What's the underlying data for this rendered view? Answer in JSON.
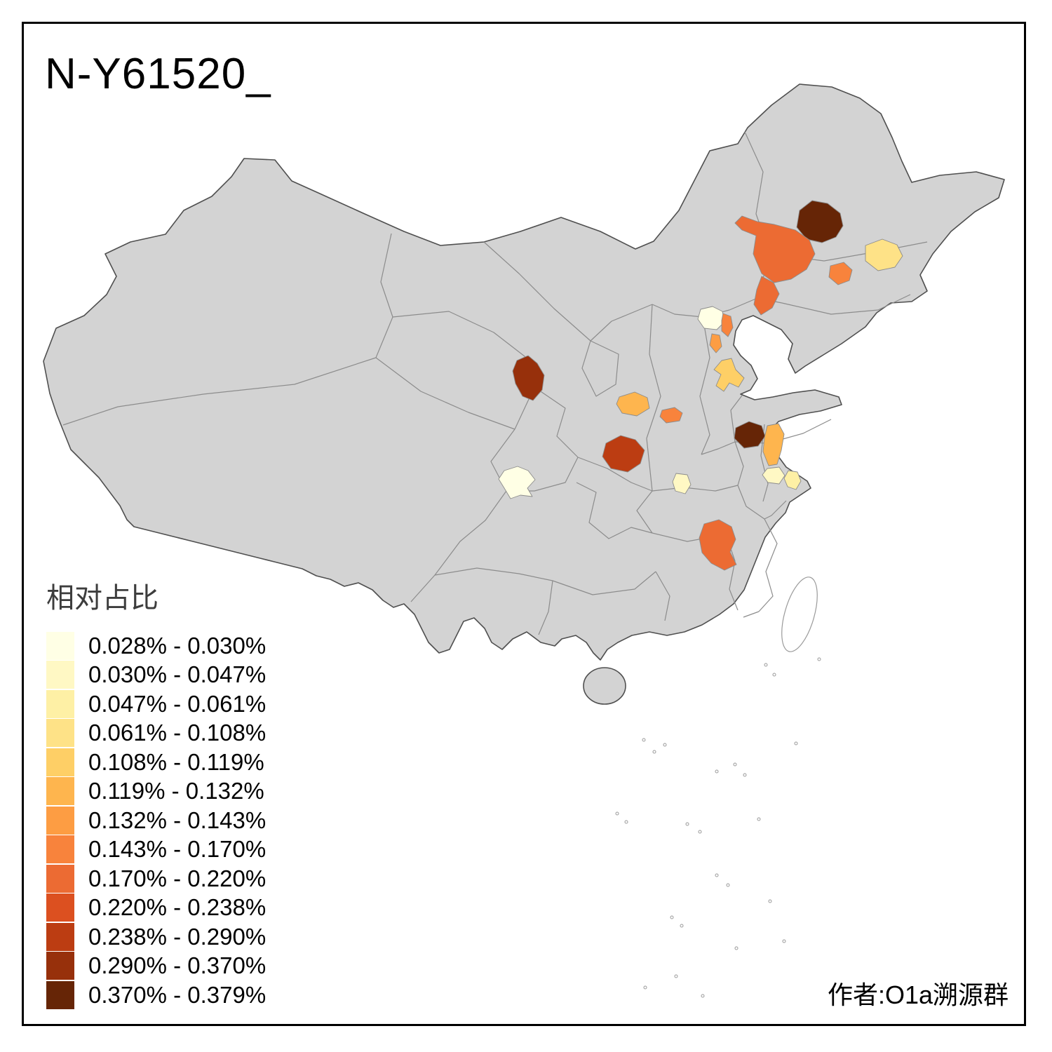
{
  "title": "N-Y61520_",
  "author": "作者:O1a溯源群",
  "legend": {
    "title": "相对占比",
    "items": [
      {
        "range": "0.028% - 0.030%",
        "color": "#FFFFE5"
      },
      {
        "range": "0.030% - 0.047%",
        "color": "#FFF8C4"
      },
      {
        "range": "0.047% - 0.061%",
        "color": "#FEF0A5"
      },
      {
        "range": "0.061% - 0.108%",
        "color": "#FEE287"
      },
      {
        "range": "0.108% - 0.119%",
        "color": "#FECF66"
      },
      {
        "range": "0.119% - 0.132%",
        "color": "#FEB54E"
      },
      {
        "range": "0.132% - 0.143%",
        "color": "#FD9D43"
      },
      {
        "range": "0.143% - 0.170%",
        "color": "#F8833C"
      },
      {
        "range": "0.170% - 0.220%",
        "color": "#EC6B33"
      },
      {
        "range": "0.220% - 0.238%",
        "color": "#DC5020"
      },
      {
        "range": "0.238% - 0.290%",
        "color": "#BC3D12"
      },
      {
        "range": "0.290% - 0.370%",
        "color": "#97300B"
      },
      {
        "range": "0.370% - 0.379%",
        "color": "#662506"
      }
    ]
  },
  "map": {
    "base_fill": "#D3D3D3",
    "border_color": "#4F4F4F",
    "province_line_color": "#8C8C8C",
    "background": "#FFFFFF",
    "regions": [
      {
        "id": "r1",
        "bucket": 12
      },
      {
        "id": "r2",
        "bucket": 8
      },
      {
        "id": "r3",
        "bucket": 8
      },
      {
        "id": "r4",
        "bucket": 7
      },
      {
        "id": "r5",
        "bucket": 3
      },
      {
        "id": "r6",
        "bucket": 0
      },
      {
        "id": "r7",
        "bucket": 7
      },
      {
        "id": "r8",
        "bucket": 6
      },
      {
        "id": "r9",
        "bucket": 4
      },
      {
        "id": "r10",
        "bucket": 5
      },
      {
        "id": "r11",
        "bucket": 7
      },
      {
        "id": "r12",
        "bucket": 11
      },
      {
        "id": "r13",
        "bucket": 10
      },
      {
        "id": "r14",
        "bucket": 12
      },
      {
        "id": "r15",
        "bucket": 5
      },
      {
        "id": "r16",
        "bucket": 1
      },
      {
        "id": "r17",
        "bucket": 2
      },
      {
        "id": "r18",
        "bucket": 0
      },
      {
        "id": "r19",
        "bucket": 1
      },
      {
        "id": "r20",
        "bucket": 8
      }
    ]
  }
}
